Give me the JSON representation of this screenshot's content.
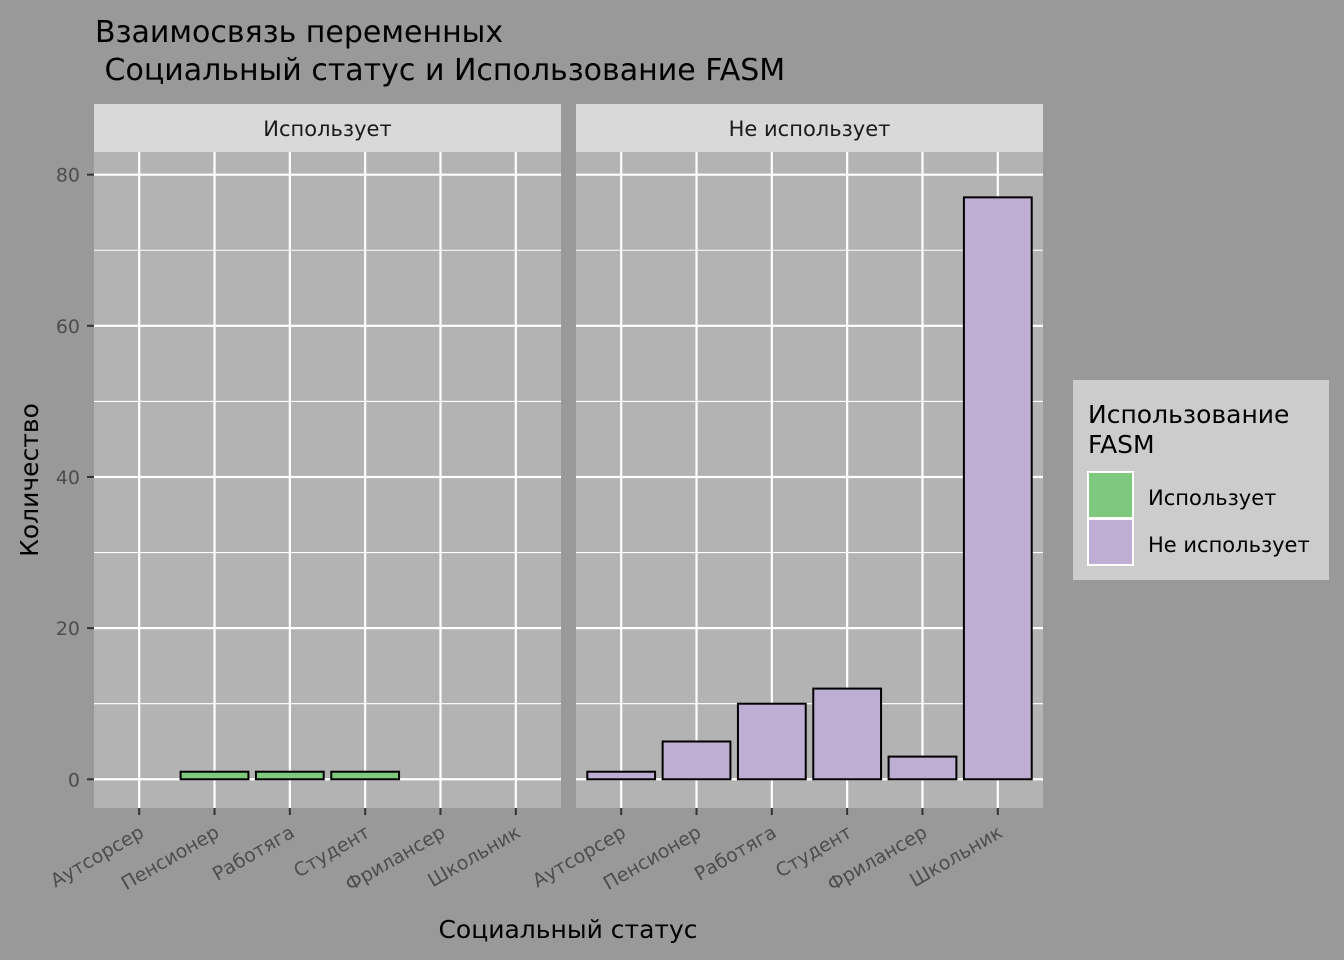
{
  "chart_data": {
    "type": "bar",
    "title_lines": [
      "Взаимосвязь переменных",
      " Социальный статус и Использование FASM"
    ],
    "xlabel": "Социальный статус",
    "ylabel": "Количество",
    "ylim": [
      -3.8,
      83
    ],
    "yticks": [
      0,
      20,
      40,
      60,
      80
    ],
    "grid": true,
    "categories": [
      "Аутсорсер",
      "Пенсионер",
      "Работяга",
      "Студент",
      "Фрилансер",
      "Школьник"
    ],
    "facets": [
      {
        "label": "Использует",
        "color": "#7FC97F",
        "values": [
          null,
          1,
          1,
          1,
          null,
          null
        ]
      },
      {
        "label": "Не использует",
        "color": "#BEAED4",
        "values": [
          1,
          5,
          10,
          12,
          3,
          77
        ]
      }
    ],
    "legend": {
      "title_lines": [
        "Использование",
        "FASM"
      ],
      "position": "right",
      "items": [
        {
          "label": "Использует",
          "color": "#7FC97F"
        },
        {
          "label": "Не использует",
          "color": "#BEAED4"
        }
      ]
    },
    "colors": {
      "background": "#999999",
      "panel": "#B3B3B3",
      "strip": "#D9D9D9",
      "legend_bg": "#CCCCCC",
      "grid": "#FFFFFF"
    }
  }
}
